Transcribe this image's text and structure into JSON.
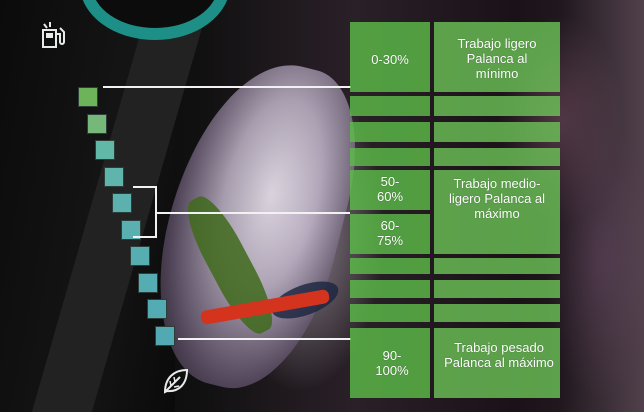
{
  "icons": {
    "fuel": "fuel-pump-icon",
    "eco": "leaf-icon"
  },
  "level_indicator": {
    "segments": 10,
    "colors": [
      "#6db35a",
      "#76b77a",
      "#62b8a6",
      "#5fb4ab",
      "#5cb1ae",
      "#5ab0b0",
      "#57aeb1",
      "#55acb2",
      "#53abb3",
      "#52a9b4"
    ]
  },
  "overlay_rows": [
    {
      "range": "0-30%",
      "description": "Trabajo ligero Palanca al mínimo"
    },
    {
      "range": "50-60%",
      "description": ""
    },
    {
      "range": "60-75%",
      "description": "Trabajo medio-ligero Palanca al máximo"
    },
    {
      "range": "90-100%",
      "description": "Trabajo pesado Palanca al máximo"
    }
  ],
  "colors": {
    "overlay_green": "#5cbe48",
    "line": "#f2f2f2",
    "accent_teal": "#1d8f86"
  }
}
